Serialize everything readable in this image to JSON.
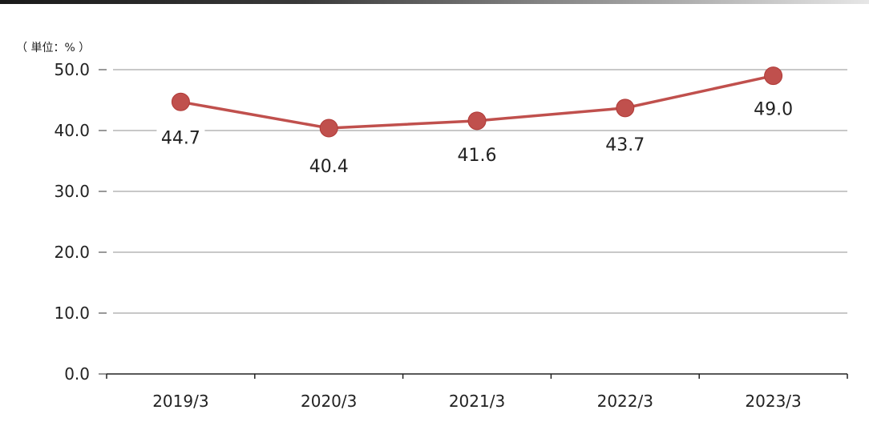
{
  "chart_data": {
    "type": "line",
    "unit_label": "（ 単位：% ）",
    "categories": [
      "2019/3",
      "2020/3",
      "2021/3",
      "2022/3",
      "2023/3"
    ],
    "series": [
      {
        "values": [
          44.7,
          40.4,
          41.6,
          43.7,
          49.0
        ]
      }
    ],
    "data_labels": [
      "44.7",
      "40.4",
      "41.6",
      "43.7",
      "49.0"
    ],
    "y_ticks": [
      "0.0",
      "10.0",
      "20.0",
      "30.0",
      "40.0",
      "50.0"
    ],
    "ylim": [
      0,
      50
    ],
    "grid": true,
    "line_color": "#c0504d",
    "marker_color": "#c0504d"
  }
}
